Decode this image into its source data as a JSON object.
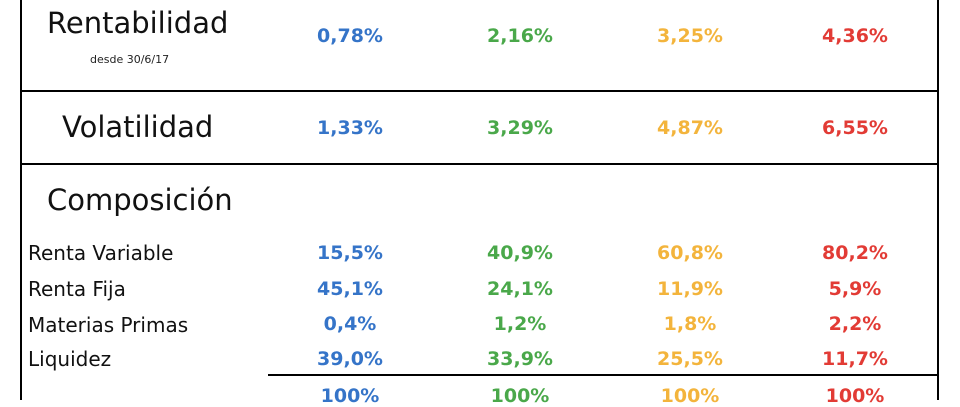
{
  "colors": {
    "c0": "#3574c8",
    "c1": "#4aa84a",
    "c2": "#f3b43c",
    "c3": "#e23b35"
  },
  "rentabilidad": {
    "title": "Rentabilidad",
    "subtitle": "desde 30/6/17",
    "values": [
      "0,78%",
      "2,16%",
      "3,25%",
      "4,36%"
    ]
  },
  "volatilidad": {
    "title": "Volatilidad",
    "values": [
      "1,33%",
      "3,29%",
      "4,87%",
      "6,55%"
    ]
  },
  "composicion": {
    "title": "Composición",
    "rows": [
      {
        "label": "Renta Variable",
        "values": [
          "15,5%",
          "40,9%",
          "60,8%",
          "80,2%"
        ]
      },
      {
        "label": "Renta Fija",
        "values": [
          "45,1%",
          "24,1%",
          "11,9%",
          "5,9%"
        ]
      },
      {
        "label": "Materias Primas",
        "values": [
          "0,4%",
          "1,2%",
          "1,8%",
          "2,2%"
        ]
      },
      {
        "label": "Liquidez",
        "values": [
          "39,0%",
          "33,9%",
          "25,5%",
          "11,7%"
        ]
      }
    ],
    "totals": [
      "100%",
      "100%",
      "100%",
      "100%"
    ]
  }
}
